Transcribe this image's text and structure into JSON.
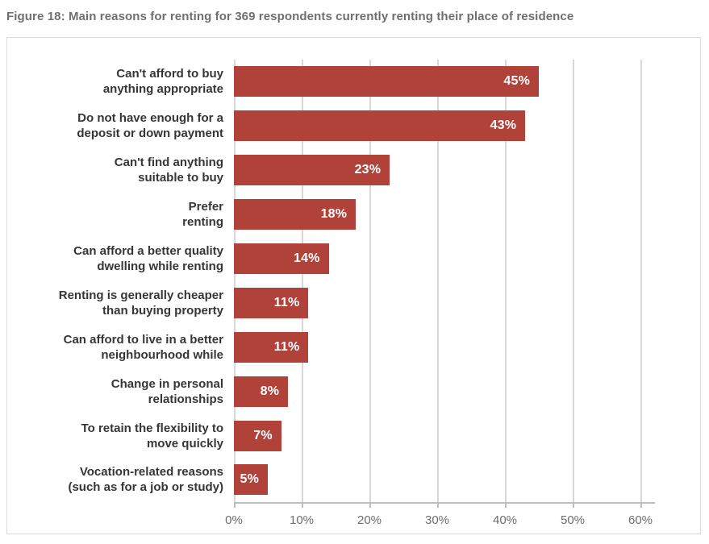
{
  "title": "Figure 18: Main reasons for renting for 369 respondents currently renting their place of residence",
  "colors": {
    "bar": "#b1423a",
    "gridline": "#d8d8d8",
    "axis": "#bdbdbd",
    "border": "#d9d9d9",
    "title_text": "#6f6f6f",
    "category_text": "#363636",
    "tick_text": "#6d6d6d",
    "value_text": "#ffffff"
  },
  "chart_data": {
    "type": "bar",
    "orientation": "horizontal",
    "title": "Figure 18: Main reasons for renting for 369 respondents currently renting their place of residence",
    "categories": [
      "Can't afford to buy anything appropriate",
      "Do not have enough for a deposit or down payment",
      "Can't find anything suitable to buy",
      "Prefer renting",
      "Can afford a better quality dwelling while renting",
      "Renting is generally cheaper than buying property",
      "Can afford to live in a better neighbourhood while",
      "Change in personal relationships",
      "To retain the flexibility to move quickly",
      "Vocation-related reasons (such as for a job or study)"
    ],
    "category_lines": [
      [
        "Can't afford to buy",
        "anything appropriate"
      ],
      [
        "Do not have enough for a",
        "deposit or down payment"
      ],
      [
        "Can't find anything",
        "suitable to buy"
      ],
      [
        "Prefer",
        "renting"
      ],
      [
        "Can afford a better quality",
        "dwelling while renting"
      ],
      [
        "Renting is generally cheaper",
        "than buying property"
      ],
      [
        "Can afford to live in a better",
        "neighbourhood while"
      ],
      [
        "Change in personal",
        "relationships"
      ],
      [
        "To retain the flexibility to",
        "move quickly"
      ],
      [
        "Vocation-related reasons",
        "(such as for a job or study)"
      ]
    ],
    "values": [
      45,
      43,
      23,
      18,
      14,
      11,
      11,
      8,
      7,
      5
    ],
    "value_labels": [
      "45%",
      "43%",
      "23%",
      "18%",
      "14%",
      "11%",
      "11%",
      "8%",
      "7%",
      "5%"
    ],
    "x_ticks": [
      "0%",
      "10%",
      "20%",
      "30%",
      "40%",
      "50%",
      "60%"
    ],
    "xlim": [
      0,
      60
    ],
    "xlabel": "",
    "ylabel": "",
    "grid": true,
    "legend": false
  }
}
